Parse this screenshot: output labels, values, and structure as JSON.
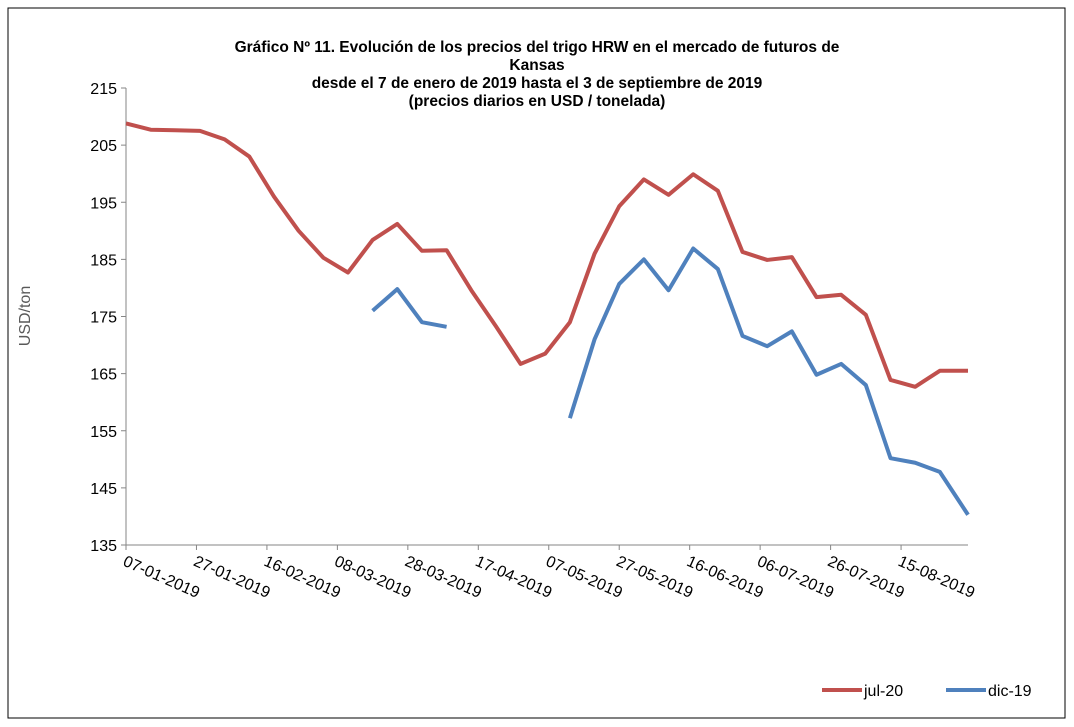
{
  "chart_data": {
    "type": "line",
    "title": [
      "Gráfico Nº 11. Evolución de los precios del trigo HRW en el mercado de futuros de",
      "Kansas",
      "desde el 7 de enero de 2019 hasta el 3 de septiembre de 2019",
      "(precios diarios en USD / tonelada)"
    ],
    "y_label": "USD/ton",
    "x": [
      "07-01-2019",
      "14-01-2019",
      "21-01-2019",
      "28-01-2019",
      "04-02-2019",
      "11-02-2019",
      "18-02-2019",
      "25-02-2019",
      "04-03-2019",
      "11-03-2019",
      "18-03-2019",
      "25-03-2019",
      "01-04-2019",
      "08-04-2019",
      "15-04-2019",
      "22-04-2019",
      "29-04-2019",
      "06-05-2019",
      "13-05-2019",
      "20-05-2019",
      "27-05-2019",
      "03-06-2019",
      "10-06-2019",
      "17-06-2019",
      "24-06-2019",
      "01-07-2019",
      "08-07-2019",
      "15-07-2019",
      "22-07-2019",
      "29-07-2019",
      "05-08-2019",
      "12-08-2019",
      "19-08-2019",
      "26-08-2019",
      "03-09-2019"
    ],
    "series": [
      {
        "name": "jul-20",
        "color": "#c0504d",
        "values": [
          208.8,
          207.7,
          207.6,
          207.5,
          206,
          203,
          196,
          190,
          185.3,
          182.7,
          188.4,
          191.2,
          186.5,
          186.6,
          179.6,
          173.3,
          166.7,
          168.5,
          174,
          186,
          194.3,
          199,
          196.3,
          199.9,
          197,
          186.3,
          184.9,
          185.4,
          178.4,
          178.8,
          175.3,
          163.9,
          162.7,
          165.5,
          165.5
        ]
      },
      {
        "name": "dic-19",
        "color": "#4f81bd",
        "values": [
          null,
          null,
          null,
          null,
          null,
          null,
          null,
          null,
          null,
          null,
          176,
          179.8,
          174,
          173.2,
          null,
          null,
          null,
          null,
          157.2,
          171,
          180.7,
          185,
          179.6,
          186.9,
          183.3,
          171.6,
          169.8,
          172.4,
          164.8,
          166.7,
          163,
          150.2,
          149.4,
          147.8,
          140.3
        ]
      }
    ],
    "xlim": [
      "07-01-2019",
      "03-09-2019"
    ],
    "xticks": [
      "07-01-2019",
      "27-01-2019",
      "16-02-2019",
      "08-03-2019",
      "28-03-2019",
      "17-04-2019",
      "07-05-2019",
      "27-05-2019",
      "16-06-2019",
      "06-07-2019",
      "26-07-2019",
      "15-08-2019"
    ],
    "ylim": [
      135,
      215
    ],
    "yticks": [
      135,
      145,
      155,
      165,
      175,
      185,
      195,
      205,
      215
    ],
    "grid": false,
    "legend": "bottom-right"
  }
}
